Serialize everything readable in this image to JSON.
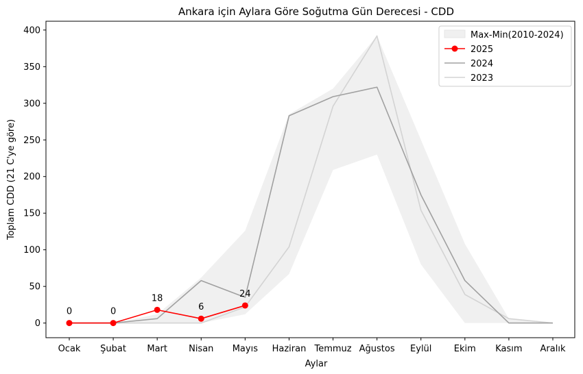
{
  "chart_data": {
    "type": "line",
    "title": "Ankara için Aylara Göre Soğutma Gün Derecesi - CDD",
    "xlabel": "Aylar",
    "ylabel": "Toplam CDD (21 C'ye göre)",
    "ylim": [
      -20,
      412
    ],
    "yticks": [
      0,
      50,
      100,
      150,
      200,
      250,
      300,
      350,
      400
    ],
    "categories": [
      "Ocak",
      "Şubat",
      "Mart",
      "Nisan",
      "Mayıs",
      "Haziran",
      "Temmuz",
      "Ağustos",
      "Eylül",
      "Ekim",
      "Kasım",
      "Aralık"
    ],
    "band": {
      "name": "Max-Min(2010-2024)",
      "color": "#f0f0f0",
      "upper": [
        0,
        0,
        12,
        62,
        126,
        285,
        320,
        392,
        250,
        108,
        6,
        0
      ],
      "lower": [
        0,
        0,
        0,
        0,
        12,
        67,
        209,
        230,
        80,
        0,
        0,
        0
      ]
    },
    "series": [
      {
        "name": "2025",
        "color": "#ff0000",
        "marker": true,
        "values": [
          0,
          0,
          18,
          6,
          24,
          null,
          null,
          null,
          null,
          null,
          null,
          null
        ]
      },
      {
        "name": "2024",
        "color": "#a0a0a0",
        "marker": false,
        "values": [
          0,
          0,
          6,
          58,
          35,
          283,
          309,
          322,
          175,
          58,
          0,
          0
        ]
      },
      {
        "name": "2023",
        "color": "#d3d3d3",
        "marker": false,
        "values": [
          0,
          0,
          0,
          0,
          22,
          104,
          296,
          392,
          154,
          39,
          6,
          0
        ]
      }
    ],
    "data_labels": [
      {
        "category": "Ocak",
        "text": "0"
      },
      {
        "category": "Şubat",
        "text": "0"
      },
      {
        "category": "Mart",
        "text": "18"
      },
      {
        "category": "Nisan",
        "text": "6"
      },
      {
        "category": "Mayıs",
        "text": "24"
      }
    ],
    "legend_position": "top-right",
    "grid": false
  }
}
